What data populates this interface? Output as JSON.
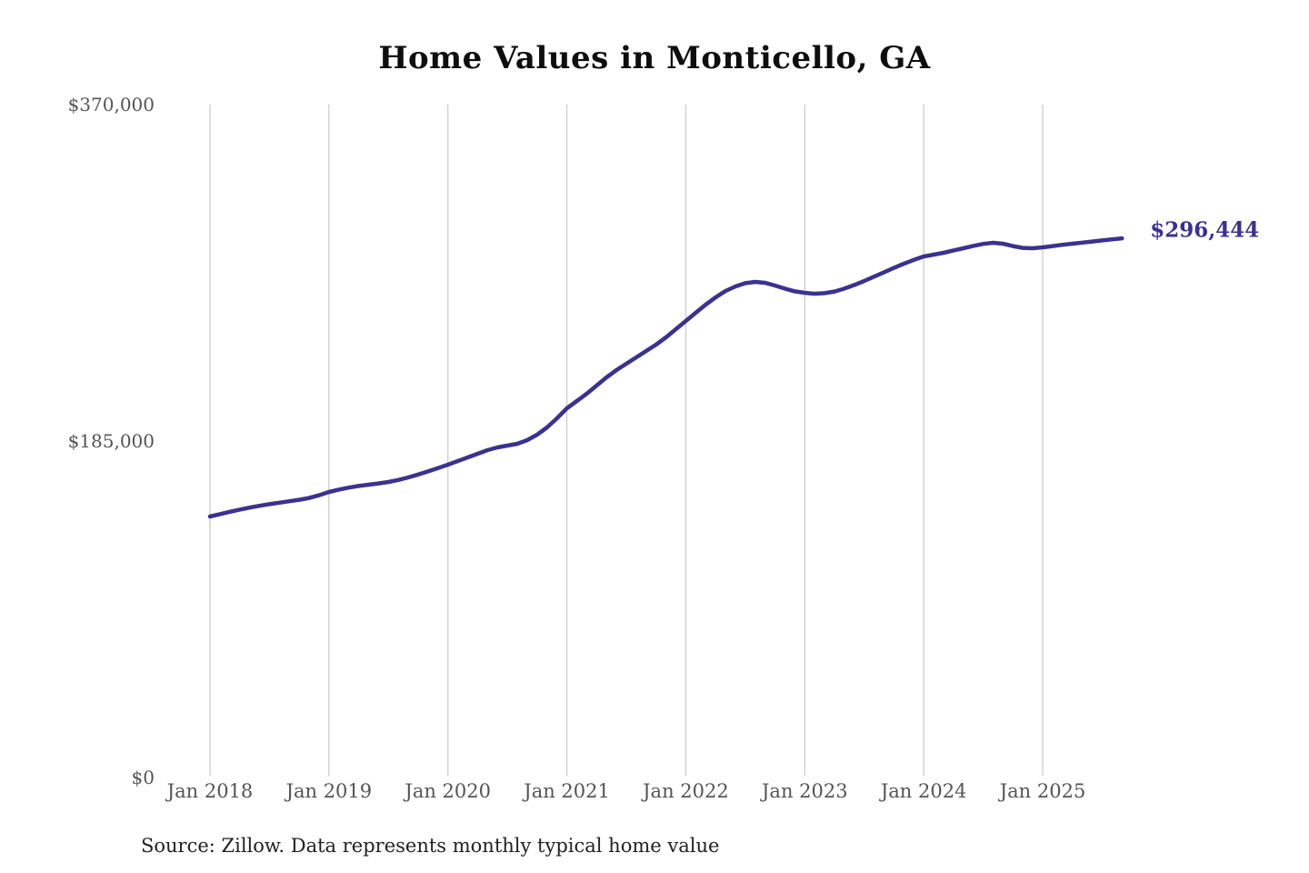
{
  "chart_data": {
    "type": "line",
    "title": "Home Values in Monticello, GA",
    "source_note": "Source: Zillow. Data represents monthly typical home value",
    "end_label": "$296,444",
    "end_value": 296444,
    "legend": "none",
    "grid": "vertical-only",
    "ylim": [
      0,
      370000
    ],
    "colors": {
      "line": "#3a3191",
      "end_label": "#3a3191",
      "grid": "#cccccc",
      "axis_text": "#555555",
      "title_text": "#0e0e0e",
      "source_text": "#222222",
      "background": "#ffffff"
    },
    "y_ticks": [
      {
        "label": "$370,000",
        "value": 370000
      },
      {
        "label": "$185,000",
        "value": 185000
      },
      {
        "label": "$0",
        "value": 0
      }
    ],
    "x_ticks": [
      {
        "label": "Jan 2018",
        "month": 0
      },
      {
        "label": "Jan 2019",
        "month": 12
      },
      {
        "label": "Jan 2020",
        "month": 24
      },
      {
        "label": "Jan 2021",
        "month": 36
      },
      {
        "label": "Jan 2022",
        "month": 48
      },
      {
        "label": "Jan 2023",
        "month": 60
      },
      {
        "label": "Jan 2024",
        "month": 72
      },
      {
        "label": "Jan 2025",
        "month": 84
      }
    ],
    "series": [
      {
        "name": "Monthly typical home value",
        "dates": [
          "2018-01",
          "2018-02",
          "2018-03",
          "2018-04",
          "2018-05",
          "2018-06",
          "2018-07",
          "2018-08",
          "2018-09",
          "2018-10",
          "2018-11",
          "2018-12",
          "2019-01",
          "2019-02",
          "2019-03",
          "2019-04",
          "2019-05",
          "2019-06",
          "2019-07",
          "2019-08",
          "2019-09",
          "2019-10",
          "2019-11",
          "2019-12",
          "2020-01",
          "2020-02",
          "2020-03",
          "2020-04",
          "2020-05",
          "2020-06",
          "2020-07",
          "2020-08",
          "2020-09",
          "2020-10",
          "2020-11",
          "2020-12",
          "2021-01",
          "2021-02",
          "2021-03",
          "2021-04",
          "2021-05",
          "2021-06",
          "2021-07",
          "2021-08",
          "2021-09",
          "2021-10",
          "2021-11",
          "2021-12",
          "2022-01",
          "2022-02",
          "2022-03",
          "2022-04",
          "2022-05",
          "2022-06",
          "2022-07",
          "2022-08",
          "2022-09",
          "2022-10",
          "2022-11",
          "2022-12",
          "2023-01",
          "2023-02",
          "2023-03",
          "2023-04",
          "2023-05",
          "2023-06",
          "2023-07",
          "2023-08",
          "2023-09",
          "2023-10",
          "2023-11",
          "2023-12",
          "2024-01",
          "2024-02",
          "2024-03",
          "2024-04",
          "2024-05",
          "2024-06",
          "2024-07",
          "2024-08",
          "2024-09",
          "2024-10",
          "2024-11",
          "2024-12",
          "2025-01",
          "2025-02",
          "2025-03",
          "2025-04",
          "2025-05",
          "2025-06",
          "2025-07",
          "2025-08",
          "2025-09"
        ],
        "values": [
          143500,
          144800,
          146100,
          147300,
          148400,
          149400,
          150300,
          151100,
          151900,
          152700,
          153700,
          155200,
          157000,
          158300,
          159400,
          160300,
          161000,
          161700,
          162500,
          163600,
          165000,
          166600,
          168300,
          170100,
          172000,
          174000,
          176000,
          178000,
          180000,
          181500,
          182500,
          183500,
          185500,
          188500,
          192500,
          197500,
          203000,
          207000,
          211000,
          215500,
          220000,
          224000,
          227500,
          231000,
          234500,
          238000,
          242000,
          246500,
          251000,
          255500,
          260000,
          264000,
          267500,
          270000,
          271800,
          272500,
          272000,
          270500,
          268800,
          267300,
          266500,
          266000,
          266300,
          267200,
          268800,
          270800,
          273000,
          275400,
          277800,
          280200,
          282500,
          284600,
          286500,
          287500,
          288500,
          289800,
          291000,
          292300,
          293400,
          294000,
          293500,
          292200,
          291200,
          291000,
          291500,
          292200,
          292900,
          293500,
          294100,
          294700,
          295300,
          295900,
          296444
        ]
      }
    ]
  }
}
